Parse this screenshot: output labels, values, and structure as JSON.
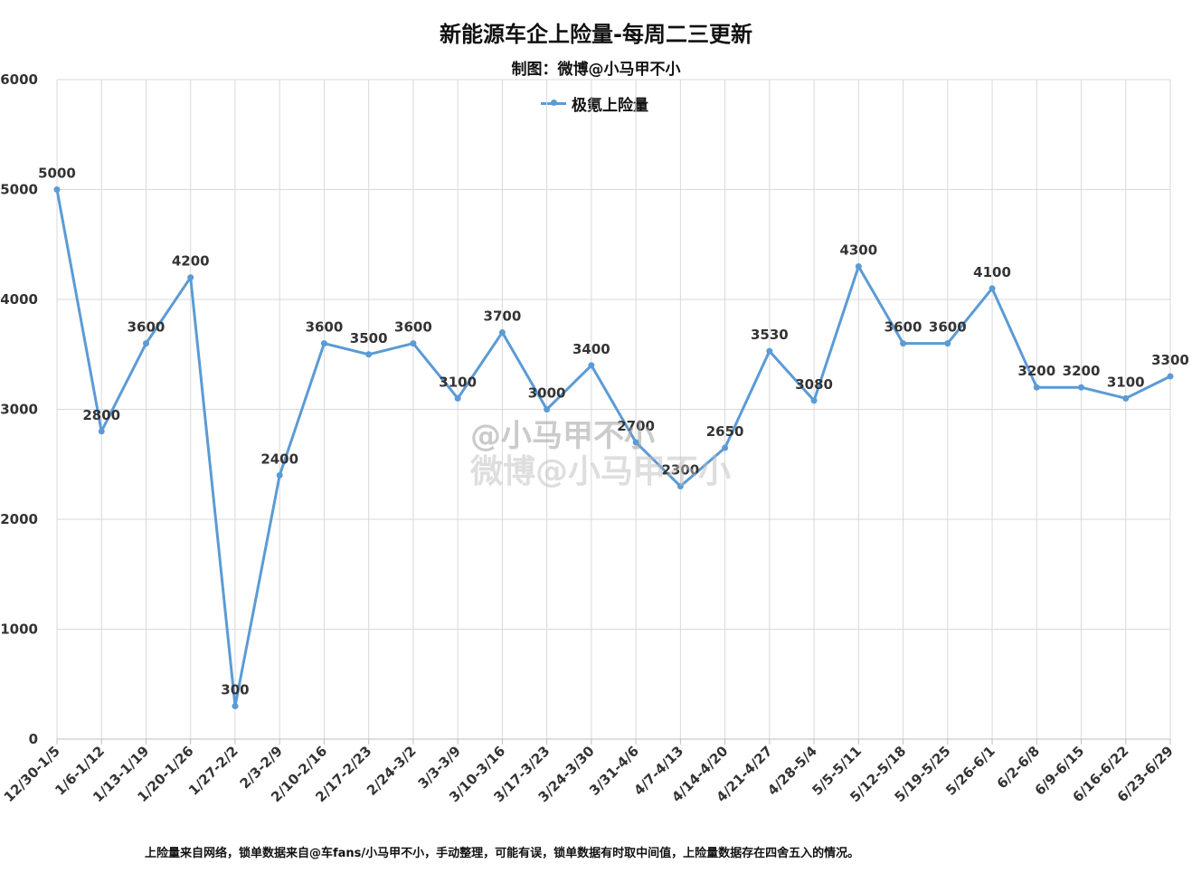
{
  "chart_data": {
    "type": "line",
    "title": "新能源车企上险量-每周二三更新",
    "subtitle": "制图：微博@小马甲不小",
    "footnote": "上险量来自网络，锁单数据来自@车fans/小马甲不小，手动整理，可能有误，锁单数据有时取中间值，上险量数据存在四舍五入的情况。",
    "watermark": "@小马甲不小",
    "watermark_sub": "微博@小马甲不小",
    "ylim": [
      0,
      6000
    ],
    "yticks": [
      0,
      1000,
      2000,
      3000,
      4000,
      5000,
      6000
    ],
    "grid": true,
    "legend_position": "top-center",
    "categories": [
      "12/30-1/5",
      "1/6-1/12",
      "1/13-1/19",
      "1/20-1/26",
      "1/27-2/2",
      "2/3-2/9",
      "2/10-2/16",
      "2/17-2/23",
      "2/24-3/2",
      "3/3-3/9",
      "3/10-3/16",
      "3/17-3/23",
      "3/24-3/30",
      "3/31-4/6",
      "4/7-4/13",
      "4/14-4/20",
      "4/21-4/27",
      "4/28-5/4",
      "5/5-5/11",
      "5/12-5/18",
      "5/19-5/25",
      "5/26-6/1",
      "6/2-6/8",
      "6/9-6/15",
      "6/16-6/22",
      "6/23-6/29"
    ],
    "series": [
      {
        "name": "极氪上险量",
        "color": "#5B9BD5",
        "values": [
          5000,
          2800,
          3600,
          4200,
          300,
          2400,
          3600,
          3500,
          3600,
          3100,
          3700,
          3000,
          3400,
          2700,
          2300,
          2650,
          3530,
          3080,
          4300,
          3600,
          3600,
          4100,
          3200,
          3200,
          3100,
          3300
        ]
      }
    ]
  }
}
